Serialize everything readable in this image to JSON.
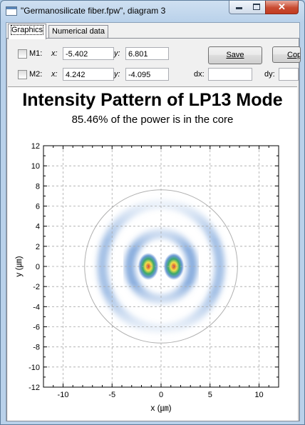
{
  "window": {
    "title": "\"Germanosilicate fiber.fpw\", diagram 3",
    "icons": {
      "app": "window-app-icon",
      "minimize": "minimize-icon",
      "maximize": "maximize-icon",
      "close": "close-icon"
    },
    "close_glyph": "✕"
  },
  "tabs": [
    {
      "label": "Graphics",
      "active": true
    },
    {
      "label": "Numerical data",
      "active": false
    }
  ],
  "markers": {
    "m1": {
      "label": "M1:",
      "checked": false,
      "x_label": "x:",
      "x_value": "-5.402",
      "y_label": "y:",
      "y_value": "6.801"
    },
    "m2": {
      "label": "M2:",
      "checked": false,
      "x_label": "x:",
      "x_value": "4.242",
      "y_label": "y:",
      "y_value": "-4.095"
    }
  },
  "delta": {
    "dx_label": "dx:",
    "dx_value": "",
    "dy_label": "dy:",
    "dy_value": ""
  },
  "buttons": {
    "save_label": "Save",
    "copy_label": "Copy"
  },
  "chart_data": {
    "type": "heatmap",
    "title": "Intensity Pattern of LP13 Mode",
    "subtitle": "85.46% of the power is in the core",
    "xlabel": "x (㎛)",
    "ylabel": "y (㎛)",
    "xlim": [
      -12,
      12
    ],
    "ylim": [
      -12,
      12
    ],
    "x_ticks": [
      -10,
      -5,
      0,
      5,
      10
    ],
    "y_ticks": [
      12,
      10,
      8,
      6,
      4,
      2,
      0,
      -2,
      -4,
      -6,
      -8,
      -10,
      -12
    ],
    "grid": true,
    "core_radius": 7.8,
    "lobes": [
      {
        "x": -1.3,
        "y": 0,
        "peak": 1.0
      },
      {
        "x": 1.3,
        "y": 0,
        "peak": 1.0
      }
    ],
    "rings": [
      {
        "radius": 3.2,
        "relative_intensity": 0.45
      },
      {
        "radius": 6.0,
        "relative_intensity": 0.35
      }
    ],
    "colormap": [
      "#ffffff",
      "#5b8ed0",
      "#3aa86b",
      "#f2e14a",
      "#d73b2a"
    ]
  }
}
